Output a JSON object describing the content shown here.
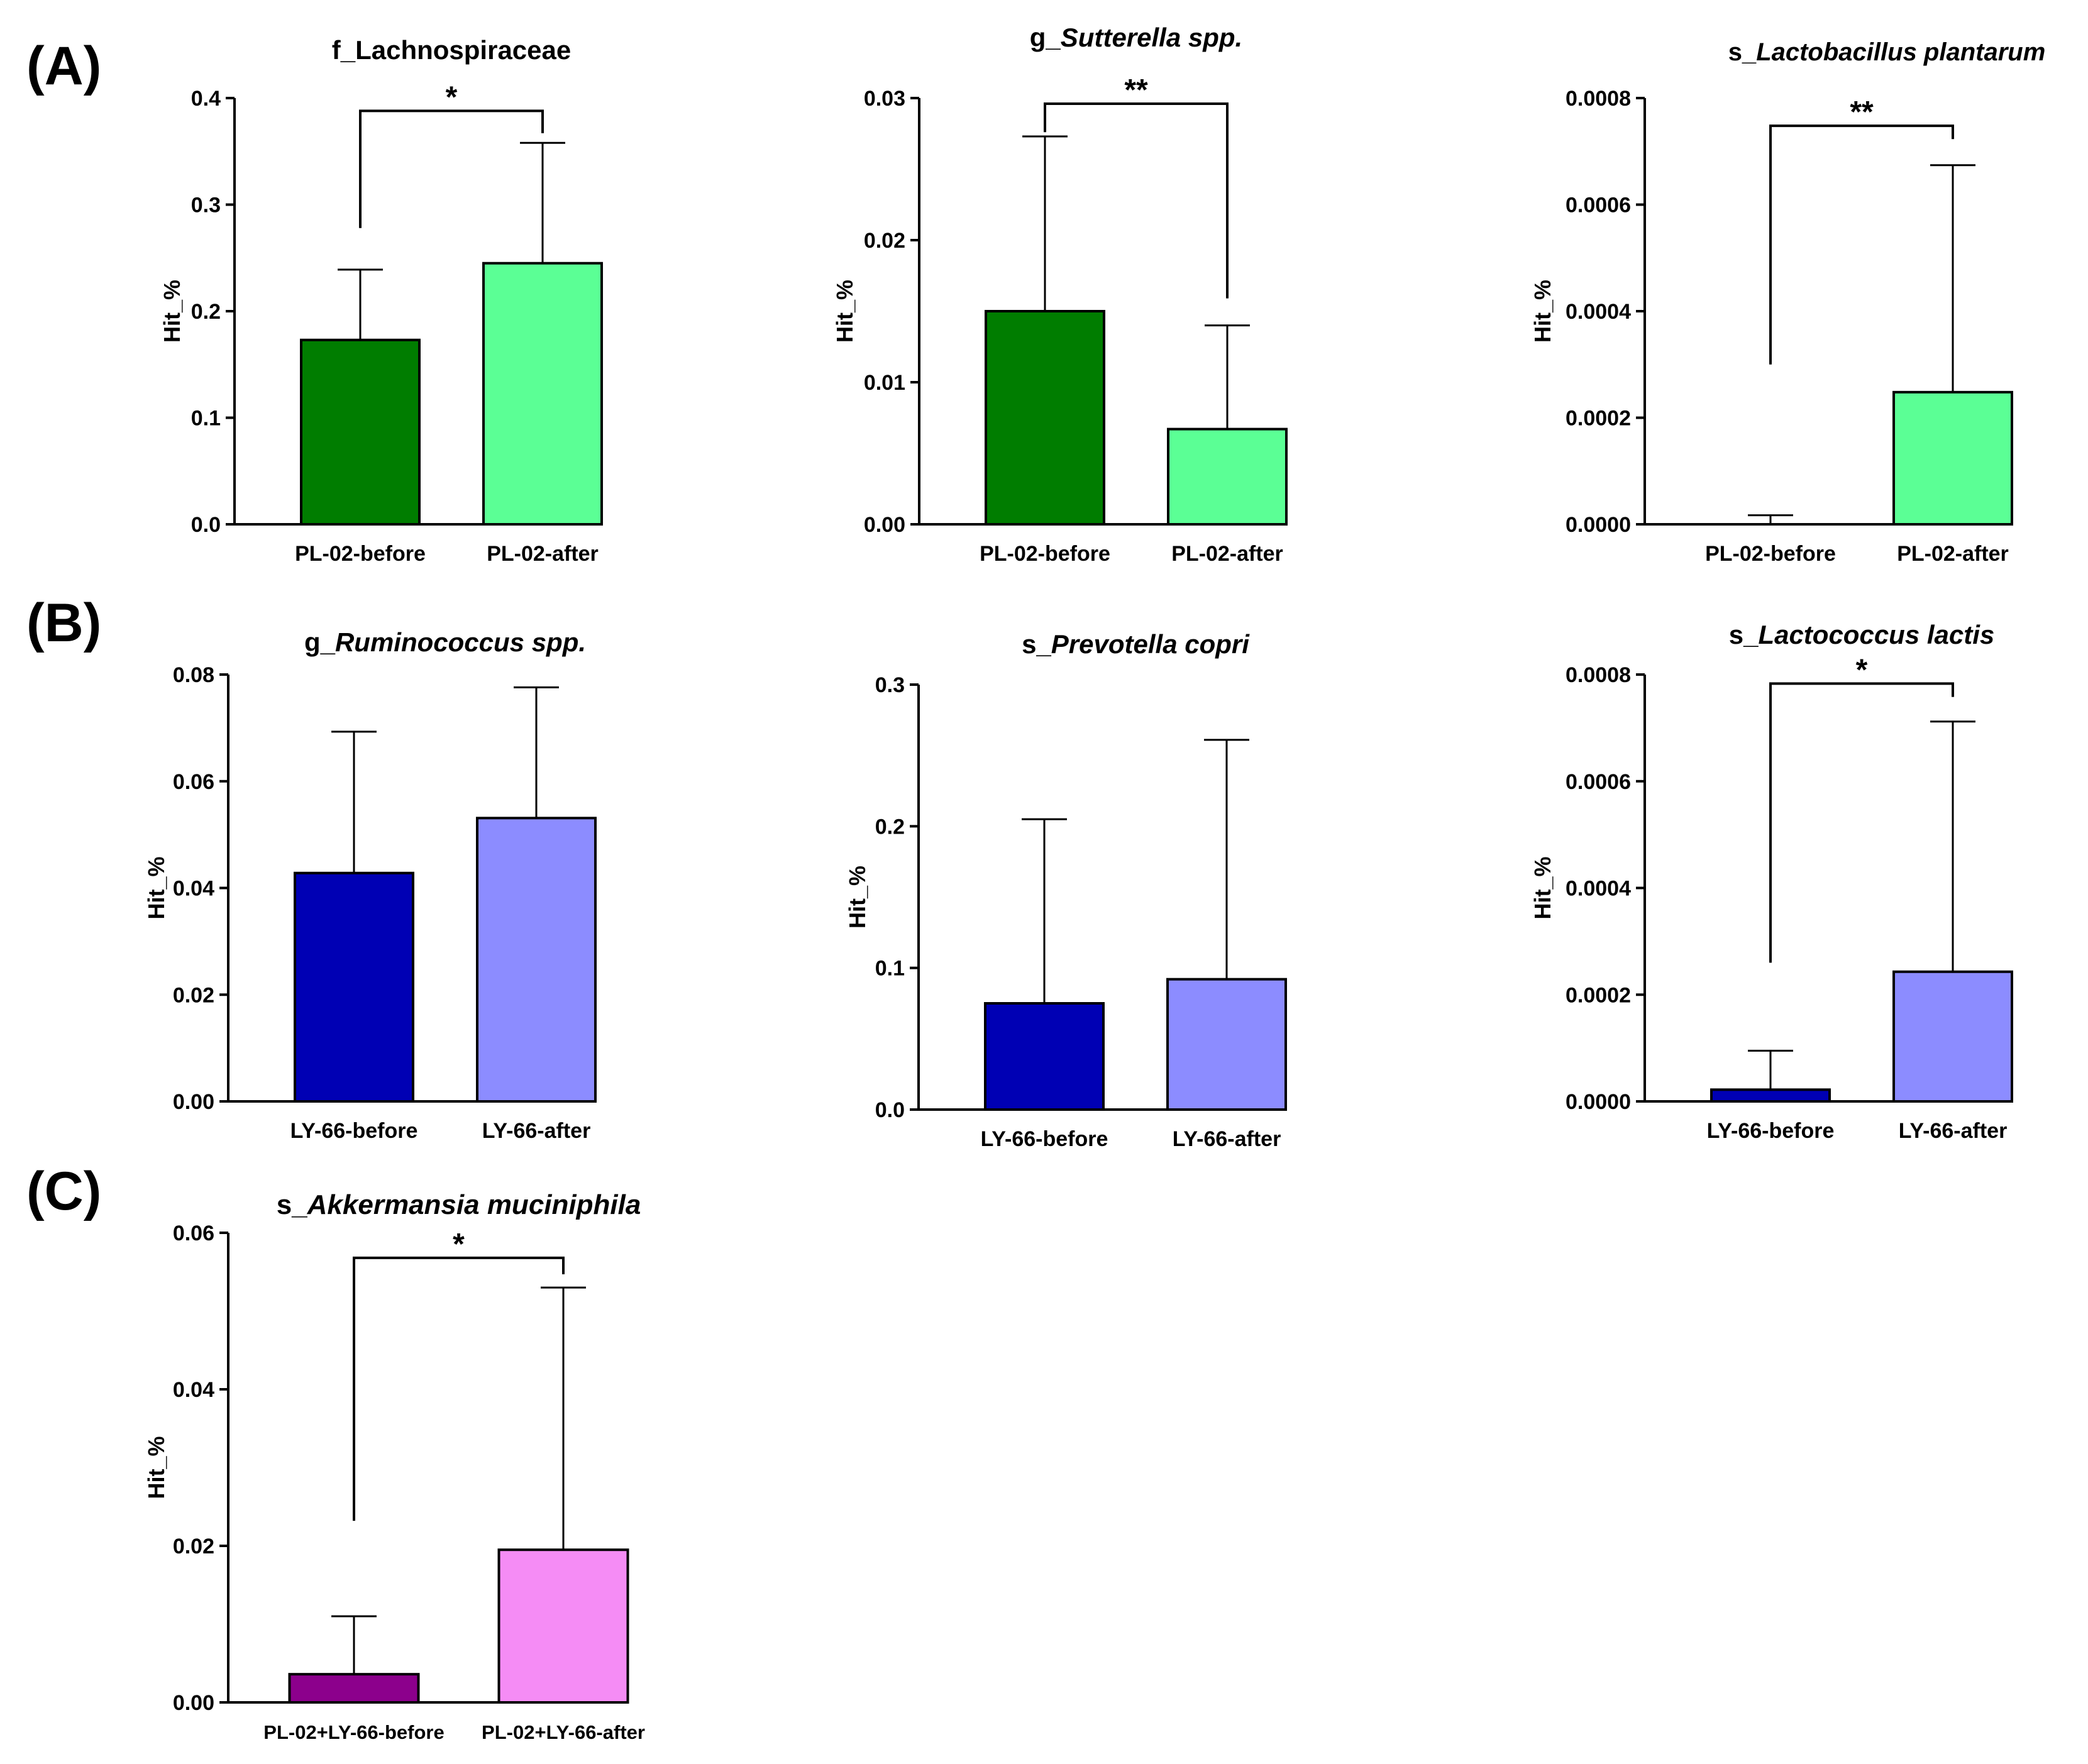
{
  "panel_labels": {
    "A": "(A)",
    "B": "(B)",
    "C": "(C)"
  },
  "chart_data": [
    {
      "type": "bar",
      "panel": "A",
      "title": {
        "prefix": "f_Lachnospiraceae",
        "italic": ""
      },
      "categories": [
        "PL-02-before",
        "PL-02-after"
      ],
      "values": [
        0.173,
        0.245
      ],
      "error_upper": [
        0.239,
        0.358
      ],
      "colors": [
        "#007d00",
        "#5bff95"
      ],
      "ylabel": "Hit_%",
      "ylim": [
        0,
        0.4
      ],
      "ticks": [
        0.0,
        0.1,
        0.2,
        0.3,
        0.4
      ],
      "tick_labels": [
        "0.0",
        "0.1",
        "0.2",
        "0.3",
        "0.4"
      ],
      "significance": {
        "text": "*",
        "bracket_y": 0.388,
        "left_end": 0.278,
        "right_end": 0.367
      }
    },
    {
      "type": "bar",
      "panel": "A",
      "title": {
        "prefix": "g_",
        "italic": "Sutterella spp."
      },
      "categories": [
        "PL-02-before",
        "PL-02-after"
      ],
      "values": [
        0.015,
        0.0067
      ],
      "error_upper": [
        0.0273,
        0.014
      ],
      "colors": [
        "#007d00",
        "#5bff95"
      ],
      "ylabel": "Hit_%",
      "ylim": [
        0,
        0.03
      ],
      "ticks": [
        0.0,
        0.01,
        0.02,
        0.03
      ],
      "tick_labels": [
        "0.00",
        "0.01",
        "0.02",
        "0.03"
      ],
      "significance": {
        "text": "**",
        "bracket_y": 0.0296,
        "left_end": 0.0276,
        "right_end": 0.0159
      }
    },
    {
      "type": "bar",
      "panel": "A",
      "title": {
        "prefix": "s_",
        "italic": "Lactobacillus plantarum"
      },
      "categories": [
        "PL-02-before",
        "PL-02-after"
      ],
      "values": [
        0.0,
        0.000248
      ],
      "error_upper": [
        1.7e-05,
        0.000674
      ],
      "colors": [
        "#007d00",
        "#5bff95"
      ],
      "ylabel": "Hit_%",
      "ylim": [
        0,
        0.0008
      ],
      "ticks": [
        0.0,
        0.0002,
        0.0004,
        0.0006,
        0.0008
      ],
      "tick_labels": [
        "0.0000",
        "0.0002",
        "0.0004",
        "0.0006",
        "0.0008"
      ],
      "significance": {
        "text": "**",
        "bracket_y": 0.000748,
        "left_end": 0.0003,
        "right_end": 0.000723
      }
    },
    {
      "type": "bar",
      "panel": "B",
      "title": {
        "prefix": "g_",
        "italic": "Ruminococcus spp."
      },
      "categories": [
        "LY-66-before",
        "LY-66-after"
      ],
      "values": [
        0.0428,
        0.0531
      ],
      "error_upper": [
        0.0693,
        0.0776
      ],
      "colors": [
        "#0000b4",
        "#8c8cff"
      ],
      "ylabel": "Hit_%",
      "ylim": [
        0,
        0.08
      ],
      "ticks": [
        0.0,
        0.02,
        0.04,
        0.06,
        0.08
      ],
      "tick_labels": [
        "0.00",
        "0.02",
        "0.04",
        "0.06",
        "0.08"
      ],
      "significance": null
    },
    {
      "type": "bar",
      "panel": "B",
      "title": {
        "prefix": "s_",
        "italic": "Prevotella copri"
      },
      "categories": [
        "LY-66-before",
        "LY-66-after"
      ],
      "values": [
        0.075,
        0.092
      ],
      "error_upper": [
        0.205,
        0.261
      ],
      "colors": [
        "#0000b4",
        "#8c8cff"
      ],
      "ylabel": "Hit_%",
      "ylim": [
        0,
        0.3
      ],
      "ticks": [
        0.0,
        0.1,
        0.2,
        0.3
      ],
      "tick_labels": [
        "0.0",
        "0.1",
        "0.2",
        "0.3"
      ],
      "significance": null
    },
    {
      "type": "bar",
      "panel": "B",
      "title": {
        "prefix": "s_",
        "italic": "Lactococcus lactis"
      },
      "categories": [
        "LY-66-before",
        "LY-66-after"
      ],
      "values": [
        2.2e-05,
        0.000243
      ],
      "error_upper": [
        9.5e-05,
        0.000712
      ],
      "colors": [
        "#0000b4",
        "#8c8cff"
      ],
      "ylabel": "Hit_%",
      "ylim": [
        0,
        0.0008
      ],
      "ticks": [
        0.0,
        0.0002,
        0.0004,
        0.0006,
        0.0008
      ],
      "tick_labels": [
        "0.0000",
        "0.0002",
        "0.0004",
        "0.0006",
        "0.0008"
      ],
      "significance": {
        "text": "*",
        "bracket_y": 0.000783,
        "left_end": 0.00026,
        "right_end": 0.000758
      }
    },
    {
      "type": "bar",
      "panel": "C",
      "title": {
        "prefix": "s_",
        "italic": "Akkermansia muciniphila"
      },
      "categories": [
        "PL-02+LY-66-before",
        "PL-02+LY-66-after"
      ],
      "values": [
        0.0036,
        0.0195
      ],
      "error_upper": [
        0.011,
        0.053
      ],
      "colors": [
        "#8c008c",
        "#f58cf5"
      ],
      "ylabel": "Hit_%",
      "ylim": [
        0,
        0.06
      ],
      "ticks": [
        0.0,
        0.02,
        0.04,
        0.06
      ],
      "tick_labels": [
        "0.00",
        "0.02",
        "0.04",
        "0.06"
      ],
      "significance": {
        "text": "*",
        "bracket_y": 0.0568,
        "left_end": 0.0232,
        "right_end": 0.0547
      }
    }
  ]
}
